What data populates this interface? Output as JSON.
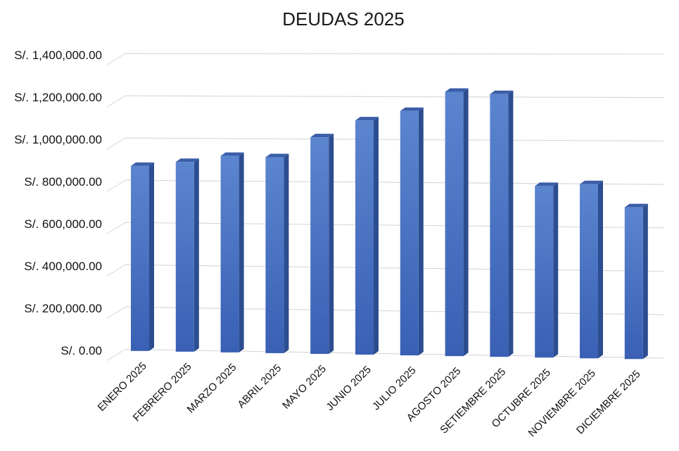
{
  "chart_data": {
    "type": "bar",
    "title": "DEUDAS 2025",
    "xlabel": "",
    "ylabel": "",
    "categories": [
      "ENERO 2025",
      "FEBRERO 2025",
      "MARZO 2025",
      "ABRIL 2025",
      "MAYO 2025",
      "JUNIO 2025",
      "JULIO 2025",
      "AGOSTO 2025",
      "SETIEMBRE 2025",
      "OCTUBRE 2025",
      "NOVIEMBRE 2025",
      "DICIEMBRE 2025"
    ],
    "values": [
      875000,
      895000,
      925000,
      920000,
      1015000,
      1095000,
      1140000,
      1230000,
      1220000,
      795000,
      805000,
      700000
    ],
    "ylim": [
      0,
      1400000
    ],
    "yticks": [
      0,
      200000,
      400000,
      600000,
      800000,
      1000000,
      1200000,
      1400000
    ],
    "ytick_labels": [
      "S/. 0.00",
      "S/. 200,000.00",
      "S/. 400,000.00",
      "S/. 600,000.00",
      "S/. 800,000.00",
      "S/. 1,000,000.00",
      "S/. 1,200,000.00",
      "S/. 1,400,000.00"
    ],
    "grid": true,
    "bar_style": "3d",
    "colors": {
      "bar_top": "#5b85cf",
      "bar_bottom": "#3960b4",
      "bar_side": "#2c4d8f",
      "bar_cap": "#3b5ea8",
      "grid": "#d9d9d9"
    }
  }
}
